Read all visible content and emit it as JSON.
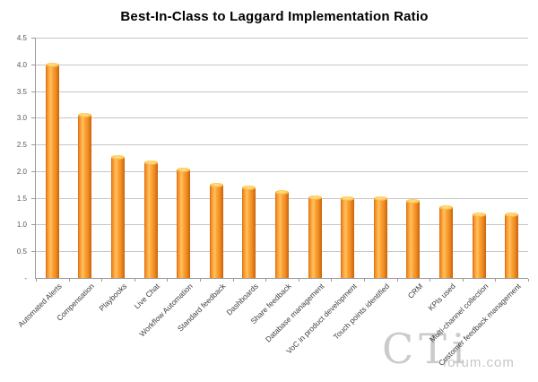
{
  "chart_data": {
    "type": "bar",
    "title": "Best-In-Class to Laggard Implementation Ratio",
    "categories": [
      "Automated Alerts",
      "Compensation",
      "Playbooks",
      "Live Chat",
      "Workflow Automation",
      "Standard feedback",
      "Dashboards",
      "Share feedback",
      "Database management",
      "VoC in product development",
      "Touch points identified",
      "CRM",
      "KPIs used",
      "Multi-channel collection",
      "Customer feedback management"
    ],
    "values": [
      4.0,
      3.05,
      2.27,
      2.16,
      2.04,
      1.74,
      1.7,
      1.62,
      1.51,
      1.5,
      1.49,
      1.45,
      1.33,
      1.2,
      1.2
    ],
    "xlabel": "",
    "ylabel": "",
    "ylim": [
      0,
      4.5
    ],
    "ytick_step": 0.5,
    "ytick_labels": [
      "4.5",
      "4.0",
      "3.5",
      "3.0",
      "2.5",
      "2.0",
      "1.5",
      "1.0",
      "0.5",
      "-"
    ],
    "grid": true,
    "legend": false,
    "bar_color": "#F79646",
    "bar_edge_color": "#C96208",
    "bar_highlight_color": "#FFC35F",
    "grid_color": "#C6C6C6",
    "axis_color": "#9B9B9B",
    "tick_label_color": "#595959",
    "category_label_color": "#3F3F3F",
    "label_rotation_deg": 45
  },
  "watermark": {
    "brand": "CTi",
    "site": "forum.com"
  }
}
